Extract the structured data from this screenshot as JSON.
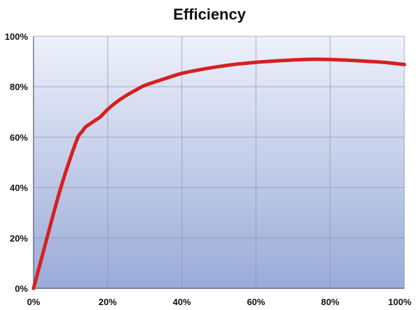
{
  "chart_data": {
    "type": "line",
    "title": "Efficiency",
    "xlabel": "",
    "ylabel": "",
    "xlim": [
      0,
      100
    ],
    "ylim": [
      0,
      100
    ],
    "x_ticks": [
      0,
      20,
      40,
      60,
      80,
      100
    ],
    "y_ticks": [
      0,
      20,
      40,
      60,
      80,
      100
    ],
    "x_tick_labels": [
      "0%",
      "20%",
      "40%",
      "60%",
      "80%",
      "100%"
    ],
    "y_tick_labels": [
      "0%",
      "20%",
      "40%",
      "60%",
      "80%",
      "100%"
    ],
    "grid": true,
    "legend": false,
    "series": [
      {
        "color": "#d62020",
        "x": [
          0,
          2,
          4,
          6,
          8,
          10,
          12,
          13,
          14,
          15,
          17,
          18,
          20,
          22,
          25,
          28,
          30,
          35,
          40,
          45,
          50,
          55,
          60,
          65,
          70,
          75,
          80,
          85,
          90,
          95,
          100
        ],
        "y": [
          0,
          11,
          22,
          33,
          43,
          52,
          60,
          62,
          64,
          65,
          67,
          68,
          71,
          73.5,
          76.5,
          79,
          80.5,
          83,
          85.3,
          86.8,
          88,
          89,
          89.7,
          90.2,
          90.6,
          90.9,
          90.8,
          90.5,
          90.1,
          89.6,
          88.8
        ]
      }
    ]
  },
  "colors": {
    "plot_bg_top": "#eef1fb",
    "plot_bg_bottom": "#9aabd8",
    "grid": "#8a90a6",
    "axis": "#555a70",
    "line": "#d62020"
  }
}
